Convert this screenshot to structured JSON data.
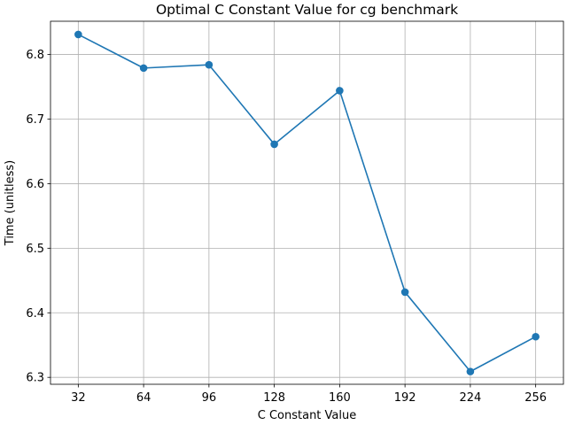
{
  "chart_data": {
    "type": "line",
    "title": "Optimal C Constant Value for cg benchmark",
    "xlabel": "C Constant Value",
    "ylabel": "Time (unitless)",
    "x": [
      32,
      64,
      96,
      128,
      160,
      192,
      224,
      256
    ],
    "xticks": [
      "32",
      "64",
      "96",
      "128",
      "160",
      "192",
      "224",
      "256"
    ],
    "yticks": [
      "6.3",
      "6.4",
      "6.5",
      "6.6",
      "6.7",
      "6.8"
    ],
    "xlim": [
      18.4,
      269.6
    ],
    "ylim": [
      6.2893,
      6.8515
    ],
    "grid": true,
    "series": [
      {
        "values": [
          6.831,
          6.779,
          6.784,
          6.661,
          6.744,
          6.432,
          6.309,
          6.363
        ],
        "color": "#1f77b4",
        "marker": "circle"
      }
    ]
  }
}
